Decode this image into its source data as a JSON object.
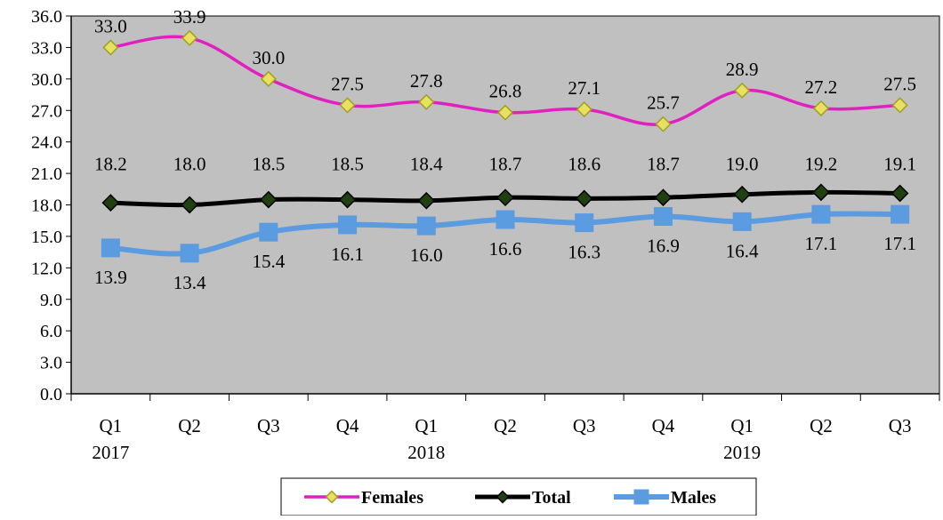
{
  "chart_data": {
    "type": "line",
    "categories": [
      "Q1",
      "Q2",
      "Q3",
      "Q4",
      "Q1",
      "Q2",
      "Q3",
      "Q4",
      "Q1",
      "Q2",
      "Q3"
    ],
    "year_labels": [
      "2017",
      "",
      "",
      "",
      "2018",
      "",
      "",
      "",
      "2019",
      "",
      ""
    ],
    "ylim": [
      0,
      36
    ],
    "yticks": [
      "0.0",
      "3.0",
      "6.0",
      "9.0",
      "12.0",
      "15.0",
      "18.0",
      "21.0",
      "24.0",
      "27.0",
      "30.0",
      "33.0",
      "36.0"
    ],
    "grid": false,
    "legend_position": "bottom",
    "series": [
      {
        "name": "Females",
        "values": [
          33.0,
          33.9,
          30.0,
          27.5,
          27.8,
          26.8,
          27.1,
          25.7,
          28.9,
          27.2,
          27.5
        ],
        "labels": [
          "33.0",
          "33.9",
          "30.0",
          "27.5",
          "27.8",
          "26.8",
          "27.1",
          "25.7",
          "28.9",
          "27.2",
          "27.5"
        ],
        "line_color": "#e020c0",
        "marker": "diamond",
        "marker_fill": "#e8e060",
        "label_position": "above"
      },
      {
        "name": "Total",
        "values": [
          18.2,
          18.0,
          18.5,
          18.5,
          18.4,
          18.7,
          18.6,
          18.7,
          19.0,
          19.2,
          19.1
        ],
        "labels": [
          "18.2",
          "18.0",
          "18.5",
          "18.5",
          "18.4",
          "18.7",
          "18.6",
          "18.7",
          "19.0",
          "19.2",
          "19.1"
        ],
        "line_color": "#000000",
        "marker": "diamond",
        "marker_fill": "#204010",
        "label_position": "above"
      },
      {
        "name": "Males",
        "values": [
          13.9,
          13.4,
          15.4,
          16.1,
          16.0,
          16.6,
          16.3,
          16.9,
          16.4,
          17.1,
          17.1
        ],
        "labels": [
          "13.9",
          "13.4",
          "15.4",
          "16.1",
          "16.0",
          "16.6",
          "16.3",
          "16.9",
          "16.4",
          "17.1",
          "17.1"
        ],
        "line_color": "#5b9be0",
        "marker": "square",
        "marker_fill": "#5b9be0",
        "label_position": "below"
      }
    ],
    "colors": {
      "plot_background": "#c0c0c0"
    }
  }
}
